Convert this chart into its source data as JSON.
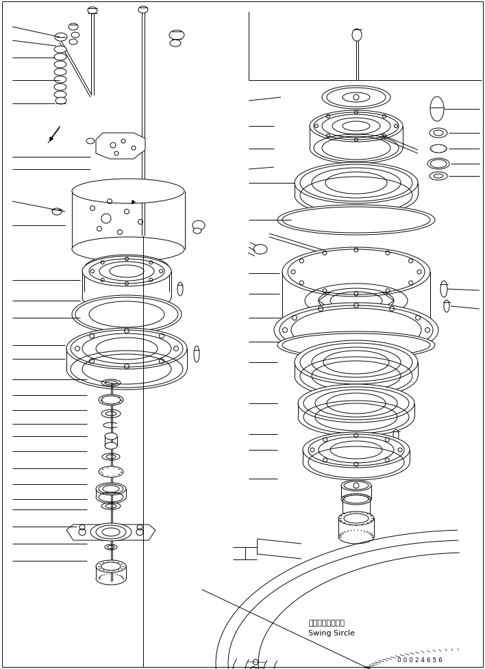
{
  "background_color": "#ffffff",
  "line_color": "#000000",
  "label_bottom_japanese": "スイングサークル",
  "label_bottom_english": "Swing Sircle",
  "part_number": "0 0 0 2 4 6 5 6",
  "fig_width": 7.08,
  "fig_height": 9.78,
  "dpi": 100
}
